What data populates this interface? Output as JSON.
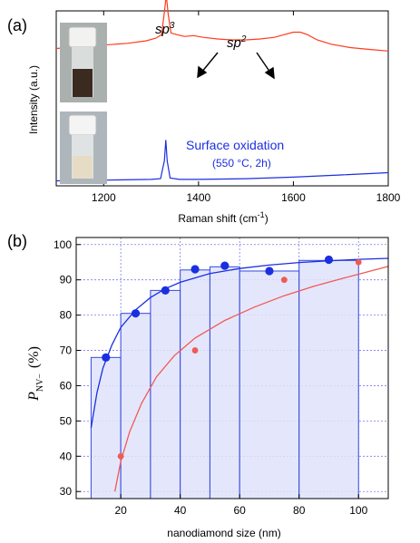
{
  "chart_data": [
    {
      "panel": "(a)",
      "type": "line",
      "xlabel_main": "Raman shift (cm",
      "xlabel_sup": "-1",
      "xlabel_end": ")",
      "ylabel": "Intensity (a.u.)",
      "xlim": [
        1100,
        1800
      ],
      "x_ticks": [
        1200,
        1400,
        1600,
        1800
      ],
      "annotations": {
        "sp3": "sp",
        "sp3_sup": "3",
        "sp2": "sp",
        "sp2_sup": "2",
        "oxidation": "Surface oxidation",
        "oxidation_conditions": "(550 °C, 2h)"
      },
      "series": [
        {
          "color": "#ff3b1f",
          "x": [
            1100,
            1150,
            1200,
            1250,
            1290,
            1310,
            1322,
            1328,
            1332,
            1336,
            1342,
            1355,
            1370,
            1390,
            1410,
            1440,
            1470,
            1500,
            1530,
            1560,
            1580,
            1600,
            1615,
            1630,
            1650,
            1680,
            1720,
            1760,
            1800
          ],
          "y": [
            0.7,
            0.72,
            0.74,
            0.76,
            0.79,
            0.82,
            0.86,
            1.12,
            1.32,
            1.1,
            0.88,
            0.86,
            0.84,
            0.85,
            0.83,
            0.81,
            0.8,
            0.8,
            0.81,
            0.83,
            0.86,
            0.89,
            0.89,
            0.86,
            0.8,
            0.75,
            0.71,
            0.69,
            0.67
          ]
        },
        {
          "color": "#1b2fe0",
          "x": [
            1100,
            1200,
            1300,
            1320,
            1328,
            1331,
            1334,
            1340,
            1360,
            1400,
            1500,
            1600,
            1700,
            1800
          ],
          "y": [
            0.03,
            0.04,
            0.05,
            0.06,
            0.3,
            0.58,
            0.3,
            0.07,
            0.05,
            0.05,
            0.06,
            0.08,
            0.11,
            0.14
          ]
        }
      ]
    },
    {
      "panel": "(b)",
      "type": "scatter",
      "xlabel": "nanodiamond size (nm)",
      "ylabel_main": "P",
      "ylabel_sub": "NV−",
      "ylabel_unit": "(%)",
      "xlim": [
        5,
        110
      ],
      "ylim": [
        28,
        102
      ],
      "x_ticks": [
        20,
        40,
        60,
        80,
        100
      ],
      "y_ticks": [
        30,
        40,
        50,
        60,
        70,
        80,
        90,
        100
      ],
      "histogram": [
        {
          "x0": 10,
          "x1": 20,
          "y": 68
        },
        {
          "x0": 20,
          "x1": 30,
          "y": 80.5
        },
        {
          "x0": 30,
          "x1": 40,
          "y": 87
        },
        {
          "x0": 40,
          "x1": 50,
          "y": 92.8
        },
        {
          "x0": 50,
          "x1": 60,
          "y": 93.7
        },
        {
          "x0": 60,
          "x1": 80,
          "y": 92.5
        },
        {
          "x0": 80,
          "x1": 100,
          "y": 95.5
        }
      ],
      "series": [
        {
          "color": "#1b2fe0",
          "points": [
            [
              15,
              68
            ],
            [
              25,
              80.5
            ],
            [
              35,
              87
            ],
            [
              45,
              93
            ],
            [
              55,
              94
            ],
            [
              70,
              92.5
            ],
            [
              90,
              95.7
            ]
          ],
          "fit": [
            [
              10,
              48
            ],
            [
              12,
              58
            ],
            [
              14,
              65
            ],
            [
              17,
              71.5
            ],
            [
              20,
              76.5
            ],
            [
              25,
              81.5
            ],
            [
              30,
              85
            ],
            [
              35,
              87.5
            ],
            [
              40,
              89.3
            ],
            [
              50,
              91.8
            ],
            [
              60,
              93.2
            ],
            [
              70,
              94.2
            ],
            [
              80,
              94.9
            ],
            [
              90,
              95.4
            ],
            [
              100,
              95.8
            ],
            [
              110,
              96.1
            ]
          ]
        },
        {
          "color": "#f05a55",
          "points": [
            [
              20,
              40
            ],
            [
              45,
              70
            ],
            [
              75,
              90
            ],
            [
              100,
              95
            ]
          ],
          "fit": [
            [
              18,
              30
            ],
            [
              20,
              38.5
            ],
            [
              23,
              47
            ],
            [
              27,
              55
            ],
            [
              32,
              62.5
            ],
            [
              38,
              68.5
            ],
            [
              45,
              73.5
            ],
            [
              55,
              78.5
            ],
            [
              65,
              82.3
            ],
            [
              75,
              85.5
            ],
            [
              85,
              88.2
            ],
            [
              95,
              90.5
            ],
            [
              100,
              91.6
            ],
            [
              110,
              93.8
            ]
          ]
        }
      ]
    }
  ]
}
